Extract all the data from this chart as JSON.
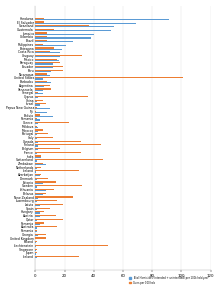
{
  "chart_data": [
    [
      "Honduras",
      91.6,
      6.2
    ],
    [
      "El Salvador",
      69.2,
      5.8
    ],
    [
      "Swaziland",
      54,
      37
    ],
    [
      "Guatemala",
      52,
      13
    ],
    [
      "Jamaica",
      40,
      8
    ],
    [
      "Colombia",
      38,
      8
    ],
    [
      "Brazil",
      26,
      8
    ],
    [
      "Philippines",
      21,
      5
    ],
    [
      "Botswana",
      18,
      13
    ],
    [
      "Costa Rica",
      17,
      10
    ],
    [
      "Uruguay",
      17,
      32
    ],
    [
      "Mexico",
      16,
      15
    ],
    [
      "Paraguay",
      12,
      17
    ],
    [
      "Ecuador",
      12,
      19
    ],
    [
      "Peru",
      11,
      19
    ],
    [
      "Nicaragua",
      10,
      8
    ],
    [
      "United States",
      5,
      101
    ],
    [
      "Barbados",
      11,
      8
    ],
    [
      "Argentina",
      6,
      10
    ],
    [
      "Venezuela",
      5,
      11
    ],
    [
      "Senegal",
      5,
      2
    ],
    [
      "Cyprus",
      2,
      36
    ],
    [
      "China",
      1,
      5
    ],
    [
      "Israel",
      3,
      7
    ],
    [
      "Papua New Guinea",
      10,
      1
    ],
    [
      "Fiji",
      8,
      0.3
    ],
    [
      "Bolivia",
      12,
      3
    ],
    [
      "Romania",
      3,
      1
    ],
    [
      "Greece",
      2,
      23
    ],
    [
      "Moldova",
      2,
      1
    ],
    [
      "Morocco",
      2,
      5
    ],
    [
      "Portugal",
      1,
      9
    ],
    [
      "Italy",
      1,
      12
    ],
    [
      "Canada",
      2,
      31
    ],
    [
      "Finland",
      2,
      45
    ],
    [
      "Belgium",
      2,
      17
    ],
    [
      "France",
      1,
      31
    ],
    [
      "India",
      4,
      4
    ],
    [
      "Switzerland",
      1,
      46
    ],
    [
      "Zimbabwe",
      7,
      5
    ],
    [
      "Netherlands",
      1,
      4
    ],
    [
      "Iceland",
      0.3,
      30
    ],
    [
      "Azerbaijan",
      3,
      4
    ],
    [
      "Denmark",
      1,
      9
    ],
    [
      "Estonia",
      5,
      14
    ],
    [
      "Sweden",
      1,
      32
    ],
    [
      "Lithuania",
      7,
      13
    ],
    [
      "Belarus",
      5,
      7
    ],
    [
      "New Zealand",
      2,
      26
    ],
    [
      "Luxembourg",
      1,
      15
    ],
    [
      "Latvia",
      3,
      19
    ],
    [
      "Spain",
      1,
      10
    ],
    [
      "Hungary",
      3,
      6
    ],
    [
      "Austria",
      3,
      14
    ],
    [
      "Qatar",
      1,
      19
    ],
    [
      "Romania",
      3,
      6
    ],
    [
      "Australia",
      1,
      15
    ],
    [
      "Romania",
      1,
      1
    ],
    [
      "Georgia",
      2,
      7
    ],
    [
      "United Kingdom",
      0.1,
      7
    ],
    [
      "Poland",
      0.5,
      1
    ],
    [
      "Liechtenstein",
      0.3,
      50
    ],
    [
      "Singapore",
      0.3,
      1
    ],
    [
      "Japan",
      0.3,
      1
    ],
    [
      "Iceland",
      1,
      30
    ]
  ],
  "blue_color": "#5B9BD5",
  "orange_color": "#ED7D31",
  "legend_blue": "Total Homicides (intended + unintended) per 100k hab/year",
  "legend_orange": "Guns per 100 hab",
  "xlim_max": 120,
  "xticks": [
    0,
    20,
    40,
    60,
    80,
    100,
    120
  ]
}
